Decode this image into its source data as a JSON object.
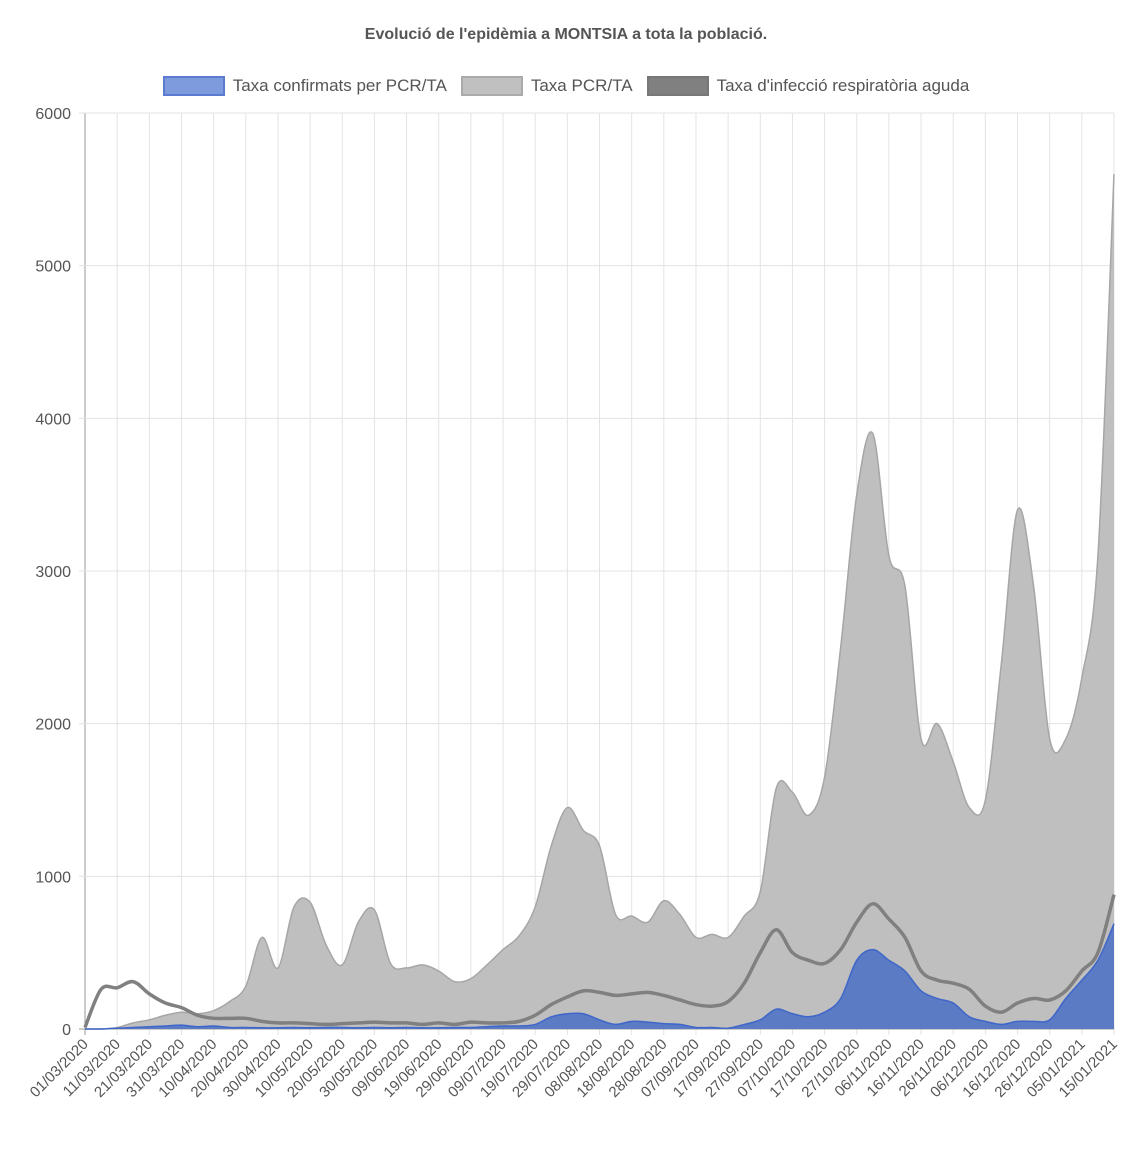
{
  "chart_data": {
    "type": "area",
    "title": "Evolució de l'epidèmia a MONTSIA a tota la població.",
    "xlabel": "",
    "ylabel": "",
    "ylim": [
      0,
      6000
    ],
    "yticks": [
      "0",
      "1000",
      "2000",
      "3000",
      "4000",
      "5000",
      "6000"
    ],
    "grid": true,
    "legend_position": "top",
    "x_start": "01/03/2020",
    "x_step_days": 5,
    "x_ticks": [
      "01/03/2020",
      "11/03/2020",
      "21/03/2020",
      "31/03/2020",
      "10/04/2020",
      "20/04/2020",
      "30/04/2020",
      "10/05/2020",
      "20/05/2020",
      "30/05/2020",
      "09/06/2020",
      "19/06/2020",
      "29/06/2020",
      "09/07/2020",
      "19/07/2020",
      "29/07/2020",
      "08/08/2020",
      "18/08/2020",
      "28/08/2020",
      "07/09/2020",
      "17/09/2020",
      "27/09/2020",
      "07/10/2020",
      "17/10/2020",
      "27/10/2020",
      "06/11/2020",
      "16/11/2020",
      "26/11/2020",
      "06/12/2020",
      "16/12/2020",
      "26/12/2020",
      "05/01/2021",
      "15/01/2021"
    ],
    "series": [
      {
        "name": "Taxa confirmats per PCR/TA",
        "color": "#5b7bc4",
        "border": "#3f66c8",
        "kind": "area",
        "values": [
          0,
          0,
          5,
          10,
          15,
          20,
          25,
          15,
          20,
          10,
          10,
          8,
          8,
          10,
          8,
          10,
          10,
          8,
          10,
          8,
          10,
          8,
          8,
          10,
          10,
          15,
          20,
          20,
          30,
          80,
          100,
          100,
          60,
          30,
          50,
          45,
          35,
          30,
          10,
          10,
          5,
          30,
          60,
          130,
          100,
          80,
          110,
          200,
          450,
          520,
          450,
          380,
          250,
          200,
          170,
          80,
          50,
          30,
          50,
          50,
          60,
          200,
          320,
          450,
          690
        ]
      },
      {
        "name": "Taxa PCR/TA",
        "color": "#bfbfbf",
        "border": "#a6a6a6",
        "kind": "area",
        "values": [
          0,
          0,
          10,
          40,
          60,
          90,
          110,
          100,
          120,
          180,
          280,
          600,
          400,
          800,
          830,
          550,
          420,
          700,
          780,
          430,
          400,
          420,
          380,
          310,
          330,
          420,
          520,
          610,
          800,
          1200,
          1450,
          1300,
          1200,
          750,
          740,
          700,
          840,
          750,
          600,
          620,
          600,
          740,
          900,
          1580,
          1550,
          1400,
          1650,
          2500,
          3500,
          3900,
          3100,
          2900,
          1900,
          2000,
          1750,
          1450,
          1500,
          2400,
          3400,
          2900,
          1900,
          1900,
          2300,
          3100,
          5600
        ]
      },
      {
        "name": "Taxa d'infecció respiratòria aguda",
        "color": "#808080",
        "border": "#808080",
        "kind": "line",
        "values": [
          10,
          260,
          270,
          310,
          230,
          170,
          140,
          90,
          70,
          70,
          70,
          50,
          40,
          40,
          35,
          30,
          35,
          40,
          45,
          40,
          40,
          30,
          40,
          30,
          45,
          40,
          40,
          50,
          90,
          160,
          210,
          250,
          240,
          220,
          230,
          240,
          220,
          190,
          160,
          150,
          180,
          300,
          500,
          650,
          500,
          450,
          430,
          520,
          700,
          820,
          720,
          600,
          380,
          320,
          300,
          260,
          150,
          110,
          170,
          200,
          190,
          250,
          380,
          500,
          880
        ]
      }
    ]
  }
}
